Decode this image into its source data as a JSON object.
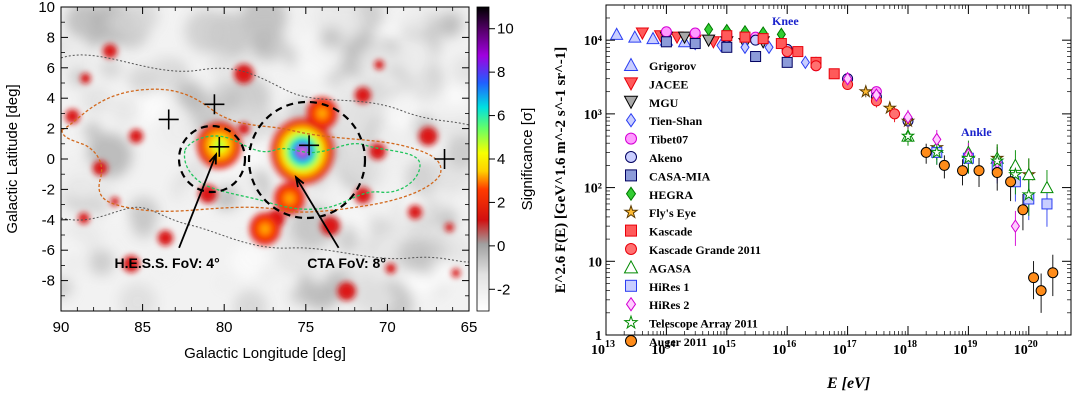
{
  "chart_data": [
    {
      "type": "heatmap",
      "xlabel": "Galactic Longitude   [deg]",
      "ylabel": "Galactic Latitude   [deg]",
      "xlim": [
        90,
        65
      ],
      "ylim": [
        -10,
        10
      ],
      "x_ticks": [
        "90",
        "85",
        "80",
        "75",
        "70",
        "65"
      ],
      "y_ticks": [
        "10",
        "8",
        "6",
        "4",
        "2",
        "0",
        "-2",
        "-4",
        "-6",
        "-8"
      ],
      "colorbar": {
        "label": "Significance  [σ]",
        "range": [
          -3,
          11
        ],
        "ticks": [
          "10",
          "8",
          "6",
          "4",
          "2",
          "0",
          "-2"
        ]
      },
      "annotations": [
        {
          "text": "H.E.S.S. FoV: 4°",
          "target_l": 80.5,
          "target_b": 0.3,
          "text_l": 83.5,
          "text_b": -6.5,
          "circle_radius_deg": 2
        },
        {
          "text": "CTA FoV: 8°",
          "target_l": 75.6,
          "target_b": -1.2,
          "text_l": 72.5,
          "text_b": -6.5,
          "circle_radius_deg": 4
        }
      ],
      "hot_spots": [
        {
          "l": 75.2,
          "b": 0.5,
          "peak_sigma": 10.5
        },
        {
          "l": 80.3,
          "b": 0.9,
          "peak_sigma": 6
        },
        {
          "l": 76.0,
          "b": -2.6,
          "peak_sigma": 4.5
        },
        {
          "l": 77.5,
          "b": -4.6,
          "peak_sigma": 4
        },
        {
          "l": 74.0,
          "b": 3.0,
          "peak_sigma": 3.5
        }
      ],
      "markers": [
        {
          "l": 83.4,
          "b": 2.6
        },
        {
          "l": 80.6,
          "b": 3.6
        },
        {
          "l": 80.3,
          "b": 0.8
        },
        {
          "l": 74.8,
          "b": 0.9
        },
        {
          "l": 66.5,
          "b": 0.0
        }
      ]
    },
    {
      "type": "scatter",
      "xlabel": "E [eV]",
      "ylabel": "E^2.6 F(E) [GeV^1.6 m^-2 s^-1 sr^-1]",
      "x_log": true,
      "y_log": true,
      "xlim": [
        10000000000000.0,
        5e+20
      ],
      "ylim": [
        1,
        30000
      ],
      "x_tick_exponents": [
        "13",
        "14",
        "15",
        "16",
        "17",
        "18",
        "19",
        "20"
      ],
      "y_ticks": [
        "1",
        "10",
        "10²",
        "10³",
        "10⁴"
      ],
      "labels": {
        "knee": "Knee",
        "ankle": "Ankle"
      },
      "series": [
        {
          "name": "Grigorov",
          "marker": "triangle-up",
          "color": "#2b3ef2",
          "fill": "#c9ceff",
          "x": [
            15000000000000.0,
            30000000000000.0,
            60000000000000.0,
            100000000000000.0,
            200000000000000.0
          ],
          "y": [
            12000,
            11000,
            10500,
            10000,
            9500
          ]
        },
        {
          "name": "JACEE",
          "marker": "triangle-down",
          "color": "#e8000b",
          "fill": "#ff5a5a",
          "x": [
            40000000000000.0,
            80000000000000.0,
            150000000000000.0,
            300000000000000.0,
            600000000000000.0
          ],
          "y": [
            12500,
            11500,
            11000,
            10000,
            9500
          ]
        },
        {
          "name": "MGU",
          "marker": "triangle-down",
          "color": "#000000",
          "fill": "#a8a8a8",
          "x": [
            100000000000000.0,
            200000000000000.0,
            500000000000000.0,
            1000000000000000.0,
            2000000000000000.0,
            4000000000000000.0
          ],
          "y": [
            11000,
            11000,
            10000,
            9500,
            9000,
            9500
          ]
        },
        {
          "name": "Tien-Shan",
          "marker": "diamond",
          "color": "#2b3ef2",
          "fill": "#c9ceff",
          "x": [
            300000000000000.0,
            800000000000000.0,
            2000000000000000.0,
            5000000000000000.0,
            1e+16,
            2e+16
          ],
          "y": [
            9000,
            8500,
            8000,
            8000,
            6500,
            5000
          ]
        },
        {
          "name": "Tibet07",
          "marker": "circle",
          "color": "#d400d4",
          "fill": "#ff99ff",
          "x": [
            100000000000000.0,
            300000000000000.0,
            1000000000000000.0,
            3000000000000000.0,
            1e+16,
            3e+16,
            1e+17,
            3e+17
          ],
          "y": [
            13000,
            12500,
            12000,
            11000,
            7000,
            4500,
            3000,
            2000
          ]
        },
        {
          "name": "Akeno",
          "marker": "circle",
          "color": "#000060",
          "fill": "#c9ceff",
          "x": [
            1000000000000000.0,
            3000000000000000.0,
            1e+16,
            3e+16,
            1e+17,
            3e+17,
            1e+18
          ],
          "y": [
            11000,
            10000,
            7500,
            5000,
            3000,
            1700,
            800
          ]
        },
        {
          "name": "CASA-MIA",
          "marker": "square",
          "color": "#000060",
          "fill": "#8c9bd9",
          "x": [
            100000000000000.0,
            300000000000000.0,
            1000000000000000.0,
            3000000000000000.0,
            1e+16
          ],
          "y": [
            9500,
            9000,
            8000,
            6000,
            5000
          ]
        },
        {
          "name": "HEGRA",
          "marker": "diamond",
          "color": "#007a00",
          "fill": "#33cc33",
          "x": [
            500000000000000.0,
            1000000000000000.0,
            2000000000000000.0,
            4000000000000000.0,
            8000000000000000.0
          ],
          "y": [
            14000,
            13500,
            13000,
            12500,
            12000
          ]
        },
        {
          "name": "Fly's Eye",
          "marker": "star",
          "color": "#5a3a00",
          "fill": "#ffbb33",
          "x": [
            2e+17,
            5e+17,
            1e+18,
            3e+18,
            1e+19,
            3e+19,
            1e+20
          ],
          "y": [
            2000,
            1200,
            800,
            350,
            250,
            250,
            150
          ]
        },
        {
          "name": "Kascade",
          "marker": "square",
          "color": "#e8000b",
          "fill": "#ff5a5a",
          "x": [
            1000000000000000.0,
            2000000000000000.0,
            4000000000000000.0,
            8000000000000000.0,
            1.5e+16,
            3e+16,
            6e+16
          ],
          "y": [
            11500,
            11000,
            10500,
            9000,
            7000,
            5000,
            3500
          ]
        },
        {
          "name": "Kascade Grande 2011",
          "marker": "circle",
          "color": "#e8000b",
          "fill": "#ff7070",
          "x": [
            1e+16,
            3e+16,
            1e+17,
            3e+17,
            6e+17
          ],
          "y": [
            7000,
            4500,
            2500,
            1500,
            1000
          ]
        },
        {
          "name": "AGASA",
          "marker": "triangle-up",
          "color": "#008a00",
          "fill": "#ffffff",
          "x": [
            1e+18,
            3e+18,
            1e+19,
            3e+19,
            6e+19,
            1e+20,
            2e+20
          ],
          "y": [
            500,
            350,
            300,
            250,
            200,
            150,
            100
          ]
        },
        {
          "name": "HiRes 1",
          "marker": "square",
          "color": "#2b3ef2",
          "fill": "#c9ceff",
          "x": [
            3e+18,
            1e+19,
            3e+19,
            6e+19,
            1e+20,
            2e+20
          ],
          "y": [
            300,
            250,
            200,
            120,
            70,
            60
          ]
        },
        {
          "name": "HiRes 2",
          "marker": "diamond",
          "color": "#d400d4",
          "fill": "#ffccff",
          "x": [
            1e+17,
            3e+17,
            1e+18,
            3e+18,
            1e+19,
            3e+19,
            6e+19
          ],
          "y": [
            3000,
            1800,
            900,
            450,
            280,
            220,
            30
          ]
        },
        {
          "name": "Telescope Array 2011",
          "marker": "star",
          "color": "#008a00",
          "fill": "#ffffff",
          "x": [
            1e+18,
            3e+18,
            1e+19,
            3e+19,
            6e+19,
            1e+20
          ],
          "y": [
            500,
            300,
            250,
            230,
            150,
            80
          ]
        },
        {
          "name": "Auger 2011",
          "marker": "circle",
          "color": "#000000",
          "fill": "#ff8c1a",
          "x": [
            2e+18,
            4e+18,
            8e+18,
            1.5e+19,
            3e+19,
            5e+19,
            8e+19,
            1.2e+20,
            1.6e+20,
            2.5e+20
          ],
          "y": [
            300,
            200,
            170,
            170,
            160,
            120,
            50,
            6,
            4,
            7
          ]
        }
      ]
    }
  ]
}
